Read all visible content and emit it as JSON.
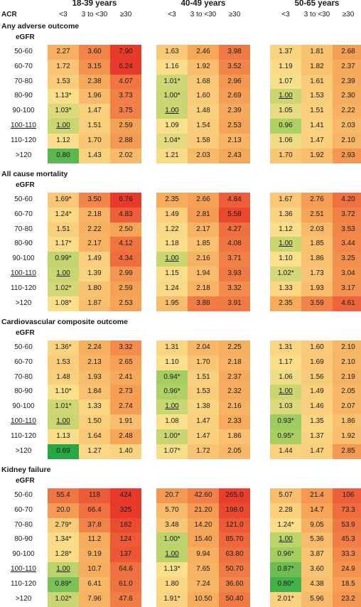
{
  "age_groups": [
    "18-39 years",
    "40-49 years",
    "50-65 years"
  ],
  "acr_label": "ACR",
  "acr_categories": [
    "<3",
    "3 to <30",
    "≥30"
  ],
  "egfr_label": "eGFR",
  "egfr_rows": [
    "50-60",
    "60-70",
    "70-80",
    "80-90",
    "90-100",
    "100-110",
    "110-120",
    ">120"
  ],
  "reference_row": "100-110",
  "sections": [
    {
      "title": "Any adverse outcome",
      "groups": [
        [
          [
            "2.27",
            "3.60",
            "7.90"
          ],
          [
            "1.72",
            "3.15",
            "6.24"
          ],
          [
            "1.53",
            "2.38",
            "4.07"
          ],
          [
            "1.13*",
            "1.96",
            "3.73"
          ],
          [
            "1.03*",
            "1.47",
            "3.75"
          ],
          [
            "1.00",
            "1.51",
            "2.59"
          ],
          [
            "1.12",
            "1.70",
            "2.88"
          ],
          [
            "0.80",
            "1.43",
            "2.02"
          ]
        ],
        [
          [
            "1.63",
            "2.46",
            "3.98"
          ],
          [
            "1.16",
            "1.92",
            "3.52"
          ],
          [
            "1.01*",
            "1.68",
            "2.96"
          ],
          [
            "1.00*",
            "1.60",
            "2.69"
          ],
          [
            "1.00",
            "1.48",
            "2.39"
          ],
          [
            "1.09",
            "1.54",
            "2.53"
          ],
          [
            "1.04*",
            "1.58",
            "2.13"
          ],
          [
            "1.21",
            "2.03",
            "2.43"
          ]
        ],
        [
          [
            "1.37",
            "1.81",
            "2.68"
          ],
          [
            "1.19",
            "1.82",
            "2.37"
          ],
          [
            "1.07",
            "1.61",
            "2.39"
          ],
          [
            "1.00",
            "1.53",
            "2.30"
          ],
          [
            "1.05",
            "1.51",
            "2.22"
          ],
          [
            "0.96",
            "1.41",
            "2.03"
          ],
          [
            "1.06",
            "1.47",
            "2.10"
          ],
          [
            "1.70",
            "1.92",
            "2.93"
          ]
        ]
      ]
    },
    {
      "title": "All cause mortality",
      "groups": [
        [
          [
            "1.69*",
            "3.50",
            "6.76"
          ],
          [
            "1.24*",
            "2.18",
            "4.83"
          ],
          [
            "1.51",
            "2.22",
            "2.50"
          ],
          [
            "1.17*",
            "2.17",
            "4.12"
          ],
          [
            "0.99*",
            "1.49",
            "4.34"
          ],
          [
            "1.00",
            "1.39",
            "2.99"
          ],
          [
            "1.02*",
            "1.80",
            "2.59"
          ],
          [
            "1.08*",
            "1.87",
            "2.53"
          ]
        ],
        [
          [
            "2.35",
            "2.66",
            "4.84"
          ],
          [
            "1.49",
            "2.81",
            "5.58"
          ],
          [
            "1.22",
            "2.17",
            "4.27"
          ],
          [
            "1.18",
            "1.85",
            "4.08"
          ],
          [
            "1.00",
            "2.16",
            "3.71"
          ],
          [
            "1.15",
            "1.94",
            "3.93"
          ],
          [
            "1.24",
            "2.18",
            "3.32"
          ],
          [
            "1.95",
            "3.88",
            "3.91"
          ]
        ],
        [
          [
            "1.67",
            "2.76",
            "4.20"
          ],
          [
            "1.36",
            "2.51",
            "3.72"
          ],
          [
            "1.12",
            "2.03",
            "3.53"
          ],
          [
            "1.00",
            "1.85",
            "3.44"
          ],
          [
            "1.10",
            "1.86",
            "3.25"
          ],
          [
            "1.02*",
            "1.73",
            "3.04"
          ],
          [
            "1.33",
            "1.93",
            "3.17"
          ],
          [
            "2.35",
            "3.59",
            "4.61"
          ]
        ]
      ]
    },
    {
      "title": "Cardiovascular composite outcome",
      "groups": [
        [
          [
            "1.36*",
            "2.24",
            "3.32"
          ],
          [
            "1.53",
            "2.13",
            "2.65"
          ],
          [
            "1.48",
            "1.93",
            "2.41"
          ],
          [
            "1.10*",
            "1.84",
            "2.73"
          ],
          [
            "1.01*",
            "1.33",
            "2.74"
          ],
          [
            "1.00",
            "1.50",
            "1.91"
          ],
          [
            "1.13",
            "1.64",
            "2.48"
          ],
          [
            "0.69",
            "1.27",
            "1.40"
          ]
        ],
        [
          [
            "1.31",
            "2.04",
            "2.25"
          ],
          [
            "1.10",
            "1.70",
            "2.18"
          ],
          [
            "0.94*",
            "1.51",
            "2.37"
          ],
          [
            "0.96*",
            "1.53",
            "2.32"
          ],
          [
            "1.00",
            "1.38",
            "2.16"
          ],
          [
            "1.08",
            "1.47",
            "2.33"
          ],
          [
            "1.00*",
            "1.47",
            "1.86"
          ],
          [
            "1.07*",
            "1.72",
            "2.05"
          ]
        ],
        [
          [
            "1.31",
            "1.60",
            "2.10"
          ],
          [
            "1.17",
            "1.69",
            "2.10"
          ],
          [
            "1.06",
            "1.56",
            "2.19"
          ],
          [
            "1.00",
            "1.49",
            "2.05"
          ],
          [
            "1.03",
            "1.46",
            "2.07"
          ],
          [
            "0.93*",
            "1.35",
            "1.86"
          ],
          [
            "0.95*",
            "1.37",
            "1.92"
          ],
          [
            "1.44",
            "1.47",
            "2.85"
          ]
        ]
      ]
    },
    {
      "title": "Kidney failure",
      "groups": [
        [
          [
            "55.4",
            "118",
            "424"
          ],
          [
            "20.0",
            "66.4",
            "325"
          ],
          [
            "2.79*",
            "37.8",
            "182"
          ],
          [
            "1.34*",
            "11.2",
            "124"
          ],
          [
            "1.28*",
            "9.19",
            "137"
          ],
          [
            "1.00",
            "10.7",
            "64.6"
          ],
          [
            "0.89*",
            "6.41",
            "61.0"
          ],
          [
            "1.02*",
            "7.96",
            "47.6"
          ]
        ],
        [
          [
            "20.7",
            "42.60",
            "265.0"
          ],
          [
            "5.70",
            "21.20",
            "198.0"
          ],
          [
            "3.48",
            "14.20",
            "121.0"
          ],
          [
            "1.00*",
            "15.40",
            "85.70"
          ],
          [
            "1.00",
            "9.94",
            "63.80"
          ],
          [
            "1.13*",
            "7.65",
            "50.70"
          ],
          [
            "1.80",
            "7.24",
            "36.60"
          ],
          [
            "1.91*",
            "10.50",
            "50.40"
          ]
        ],
        [
          [
            "5.07",
            "21.4",
            "106"
          ],
          [
            "2.28",
            "14.7",
            "73.3"
          ],
          [
            "1.24*",
            "9.05",
            "53.9"
          ],
          [
            "1.00",
            "5.36",
            "45.3"
          ],
          [
            "0.96*",
            "3.87",
            "33.3"
          ],
          [
            "0.87*",
            "3.60",
            "24.9"
          ],
          [
            "0.80*",
            "4.38",
            "18.5"
          ],
          [
            "2.01*",
            "5.96",
            "23.2"
          ]
        ]
      ]
    }
  ],
  "reference_cells": [
    [
      [
        5,
        0
      ],
      [
        4,
        0
      ],
      [
        3,
        0
      ]
    ],
    [
      [
        5,
        0
      ],
      [
        4,
        0
      ],
      [
        3,
        0
      ]
    ],
    [
      [
        5,
        0
      ],
      [
        4,
        0
      ],
      [
        3,
        0
      ]
    ],
    [
      [
        5,
        0
      ],
      [
        4,
        0
      ],
      [
        3,
        0
      ]
    ]
  ],
  "colors": {
    "green_dark": "#27a844",
    "green_light": "#a9cf62",
    "yellow": "#fbe08c",
    "orange": "#f6a557",
    "red": "#e83a2a"
  }
}
